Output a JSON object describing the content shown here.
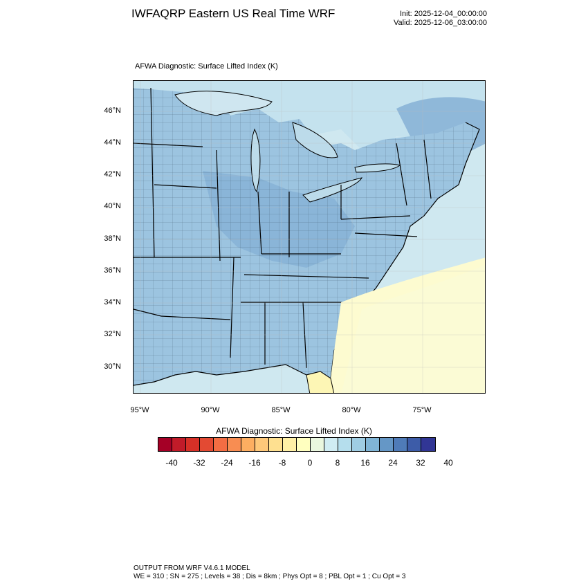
{
  "header": {
    "title": "IWFAQRP Eastern US Real Time WRF",
    "init": "Init: 2025-12-04_00:00:00",
    "valid": "Valid: 2025-12-06_03:00:00"
  },
  "map": {
    "title": "AFWA Diagnostic: Surface Lifted Index   (K)",
    "lat_labels": [
      "46°N",
      "44°N",
      "42°N",
      "40°N",
      "38°N",
      "36°N",
      "34°N",
      "32°N",
      "30°N"
    ],
    "lon_labels": [
      "95°W",
      "90°W",
      "85°W",
      "80°W",
      "75°W"
    ]
  },
  "colorbar": {
    "title": "AFWA Diagnostic: Surface Lifted Index  (K)",
    "labels": [
      "-40",
      "-32",
      "-24",
      "-16",
      "-8",
      "0",
      "8",
      "16",
      "24",
      "32",
      "40"
    ],
    "colors": [
      "#a50026",
      "#c11b29",
      "#d73027",
      "#e34a33",
      "#f46d43",
      "#f88d52",
      "#fdae61",
      "#fec87a",
      "#fee090",
      "#fff0a6",
      "#ffffbf",
      "#eaf7df",
      "#d0ecf3",
      "#b5deed",
      "#9fcde3",
      "#80b5d6",
      "#6597c6",
      "#4f7bb8",
      "#3d5ca8",
      "#313695"
    ]
  },
  "footer": {
    "line1": "OUTPUT FROM WRF V4.6.1 MODEL",
    "line2": "WE = 310 ; SN = 275 ; Levels = 38 ; Dis = 8km ; Phys Opt = 8 ; PBL Opt = 1 ; Cu Opt = 3"
  }
}
